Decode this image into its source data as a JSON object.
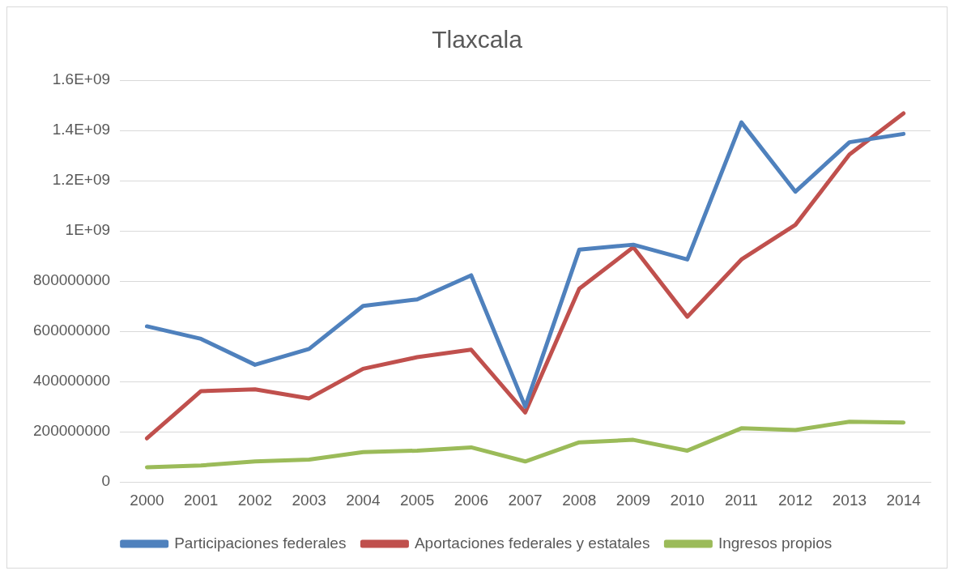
{
  "chart_data": {
    "type": "line",
    "title": "Tlaxcala",
    "categories": [
      "2000",
      "2001",
      "2002",
      "2003",
      "2004",
      "2005",
      "2006",
      "2007",
      "2008",
      "2009",
      "2010",
      "2011",
      "2012",
      "2013",
      "2014"
    ],
    "series": [
      {
        "name": "Participaciones federales",
        "color": "#4f81bd",
        "values": [
          620000000,
          570000000,
          467000000,
          530000000,
          701000000,
          727000000,
          823000000,
          300000000,
          925000000,
          945000000,
          886000000,
          1432000000,
          1156000000,
          1353000000,
          1386000000
        ]
      },
      {
        "name": "Aportaciones federales y estatales",
        "color": "#c0504d",
        "values": [
          174000000,
          362000000,
          369000000,
          333000000,
          451000000,
          497000000,
          527000000,
          277000000,
          770000000,
          935000000,
          658000000,
          886000000,
          1024000000,
          1304000000,
          1468000000
        ]
      },
      {
        "name": "Ingresos propios",
        "color": "#9bbb59",
        "values": [
          59000000,
          66000000,
          82000000,
          89000000,
          119000000,
          125000000,
          138000000,
          82000000,
          158000000,
          168000000,
          125000000,
          214000000,
          207000000,
          240000000,
          237000000
        ]
      }
    ],
    "ylim": [
      0,
      1600000000
    ],
    "yticks": [
      0,
      200000000,
      400000000,
      600000000,
      800000000,
      {
        "value": 1000000000,
        "label": "1E+09"
      },
      {
        "value": 1200000000,
        "label": "1.2E+09"
      },
      {
        "value": 1400000000,
        "label": "1.4E+09"
      },
      {
        "value": 1600000000,
        "label": "1.6E+09"
      }
    ],
    "grid": "y",
    "legend": "bottom",
    "marker": "none",
    "line_style": "solid"
  }
}
